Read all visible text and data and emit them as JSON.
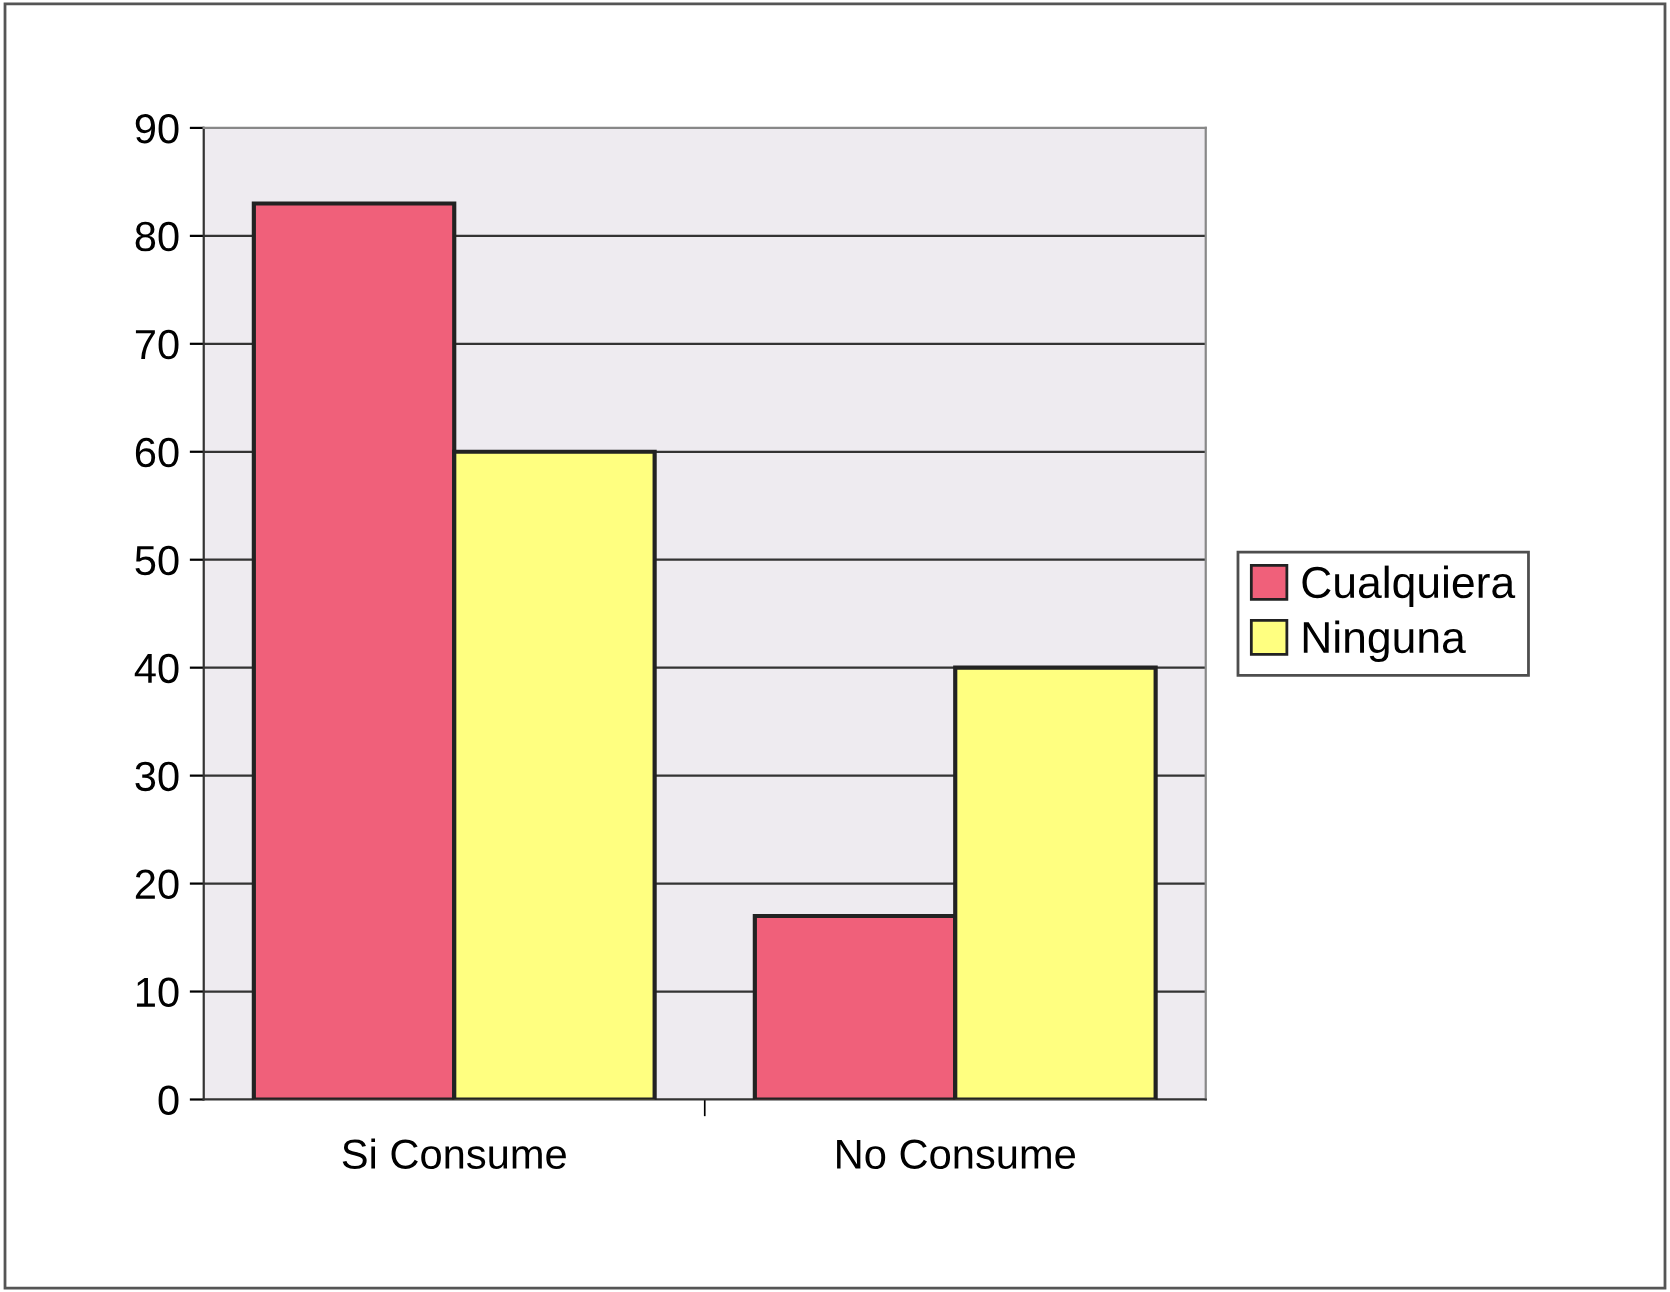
{
  "chart_data": {
    "type": "bar",
    "categories": [
      "Si Consume",
      "No Consume"
    ],
    "series": [
      {
        "name": "Cualquiera",
        "color": "#f0607a",
        "values": [
          83,
          17
        ]
      },
      {
        "name": "Ninguna",
        "color": "#ffff80",
        "values": [
          60,
          40
        ]
      }
    ],
    "ylim": [
      0,
      90
    ],
    "yticks": [
      0,
      10,
      20,
      30,
      40,
      50,
      60,
      70,
      80,
      90
    ],
    "grid": "y",
    "legend": "right"
  }
}
